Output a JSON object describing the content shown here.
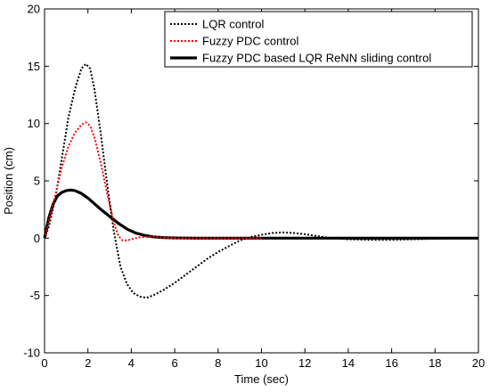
{
  "chart_data": {
    "type": "line",
    "title": "",
    "xlabel": "Time (sec)",
    "ylabel": "Position (cm)",
    "xlim": [
      0,
      20
    ],
    "ylim": [
      -10,
      20
    ],
    "x_ticks": [
      "0",
      "2",
      "4",
      "6",
      "8",
      "10",
      "12",
      "14",
      "16",
      "18",
      "20"
    ],
    "y_ticks": [
      "-10",
      "-5",
      "0",
      "5",
      "10",
      "15",
      "20"
    ],
    "grid": false,
    "legend_position": "top-right",
    "series": [
      {
        "name": "LQR control",
        "color": "#000000",
        "style": "dotted",
        "x": [
          0,
          0.2,
          0.5,
          0.8,
          1.1,
          1.4,
          1.7,
          1.9,
          2.1,
          2.3,
          2.6,
          2.9,
          3.2,
          3.5,
          3.8,
          4.1,
          4.4,
          4.7,
          5.0,
          5.5,
          6.0,
          6.5,
          7.0,
          7.5,
          8.0,
          8.5,
          9.0,
          9.5,
          10.0,
          10.5,
          11.0,
          11.5,
          12.0,
          12.5,
          13.0,
          14.0,
          15.0,
          16.0,
          17.0,
          18.0,
          19.0,
          20.0
        ],
        "y": [
          0,
          1.0,
          3.5,
          7.0,
          10.5,
          13.0,
          14.8,
          15.2,
          14.8,
          13.0,
          9.0,
          4.5,
          0.5,
          -2.5,
          -4.0,
          -4.8,
          -5.1,
          -5.2,
          -5.0,
          -4.5,
          -3.9,
          -3.2,
          -2.5,
          -1.8,
          -1.2,
          -0.7,
          -0.2,
          0.1,
          0.3,
          0.45,
          0.5,
          0.45,
          0.35,
          0.2,
          0.05,
          -0.1,
          -0.15,
          -0.15,
          -0.1,
          -0.05,
          0.0,
          0.0
        ]
      },
      {
        "name": "Fuzzy PDC control",
        "color": "#ff0000",
        "style": "dotted",
        "x": [
          0,
          0.2,
          0.5,
          0.8,
          1.1,
          1.4,
          1.7,
          1.9,
          2.1,
          2.3,
          2.6,
          2.9,
          3.2,
          3.4,
          3.6,
          3.8,
          4.0,
          4.3,
          4.6,
          5.0,
          5.5,
          6.0,
          7.0,
          8.0,
          10.0
        ],
        "y": [
          0,
          1.5,
          3.8,
          6.2,
          8.0,
          9.2,
          9.9,
          10.1,
          9.8,
          8.8,
          6.5,
          3.8,
          1.3,
          0.2,
          -0.2,
          -0.2,
          -0.1,
          0.05,
          0.1,
          0.15,
          0.05,
          0.0,
          0.0,
          0.0,
          0.0
        ]
      },
      {
        "name": "Fuzzy PDC based LQR ReNN sliding control",
        "color": "#000000",
        "style": "solid",
        "x": [
          0,
          0.2,
          0.4,
          0.6,
          0.8,
          1.0,
          1.2,
          1.4,
          1.7,
          2.0,
          2.3,
          2.6,
          3.0,
          3.4,
          3.8,
          4.2,
          4.6,
          5.0,
          5.5,
          6.0,
          7.0,
          8.0,
          9.0,
          10.0,
          12.0,
          14.0,
          16.0,
          18.0,
          20.0
        ],
        "y": [
          0,
          1.8,
          3.0,
          3.7,
          4.0,
          4.15,
          4.2,
          4.15,
          3.9,
          3.5,
          3.0,
          2.5,
          1.9,
          1.3,
          0.8,
          0.45,
          0.25,
          0.12,
          0.05,
          0.02,
          0.0,
          0.0,
          0.0,
          0.0,
          0.0,
          0.0,
          0.0,
          0.0,
          0.0
        ]
      }
    ]
  }
}
